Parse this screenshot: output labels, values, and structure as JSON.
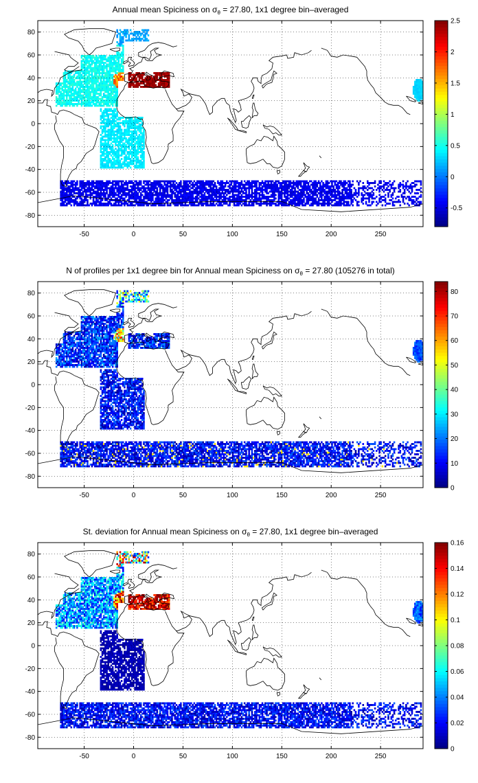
{
  "figure": {
    "panels": [
      {
        "id": "spiciness",
        "title_parts": [
          "Annual mean Spiciness on ",
          "σ",
          "θ",
          " = 27.80, 1x1 degree bin–averaged"
        ],
        "colorbar": {
          "range": [
            -0.8,
            2.5
          ],
          "ticks": [
            -0.5,
            0,
            0.5,
            1,
            1.5,
            2,
            2.5
          ],
          "tick_labels": [
            "-0.5",
            "0",
            "0.5",
            "1",
            "1.5",
            "2",
            "2.5"
          ]
        },
        "field": "spice"
      },
      {
        "id": "profile-count",
        "title_parts": [
          "N of profiles per 1x1 degree bin for Annual mean Spiciness on ",
          "σ",
          "θ",
          " = 27.80 (105276 in total)"
        ],
        "colorbar": {
          "range": [
            0,
            84
          ],
          "ticks": [
            0,
            10,
            20,
            30,
            40,
            50,
            60,
            70,
            80
          ],
          "tick_labels": [
            "0",
            "10",
            "20",
            "30",
            "40",
            "50",
            "60",
            "70",
            "80"
          ]
        },
        "field": "count"
      },
      {
        "id": "std-dev",
        "title_parts": [
          "St. deviation for Annual mean Spiciness on ",
          "σ",
          "θ",
          " = 27.80, 1x1 degree bin–averaged"
        ],
        "colorbar": {
          "range": [
            0,
            0.16
          ],
          "ticks": [
            0,
            0.02,
            0.04,
            0.06,
            0.08,
            0.1,
            0.12,
            0.14,
            0.16
          ],
          "tick_labels": [
            "0",
            "0.02",
            "0.04",
            "0.06",
            "0.08",
            "0.1",
            "0.12",
            "0.14",
            "0.16"
          ]
        },
        "field": "std"
      }
    ],
    "axes": {
      "x_range": [
        -97,
        293
      ],
      "y_range": [
        -90,
        90
      ],
      "x_ticks": [
        -50,
        0,
        50,
        100,
        150,
        200,
        250
      ],
      "x_tick_labels": [
        "-50",
        "0",
        "50",
        "100",
        "150",
        "200",
        "250"
      ],
      "y_ticks": [
        -80,
        -60,
        -40,
        -20,
        0,
        20,
        40,
        60,
        80
      ],
      "y_tick_labels": [
        "-80",
        "-60",
        "-40",
        "-20",
        "0",
        "20",
        "40",
        "60",
        "80"
      ],
      "grid": "dotted",
      "colormap": "jet"
    }
  }
}
